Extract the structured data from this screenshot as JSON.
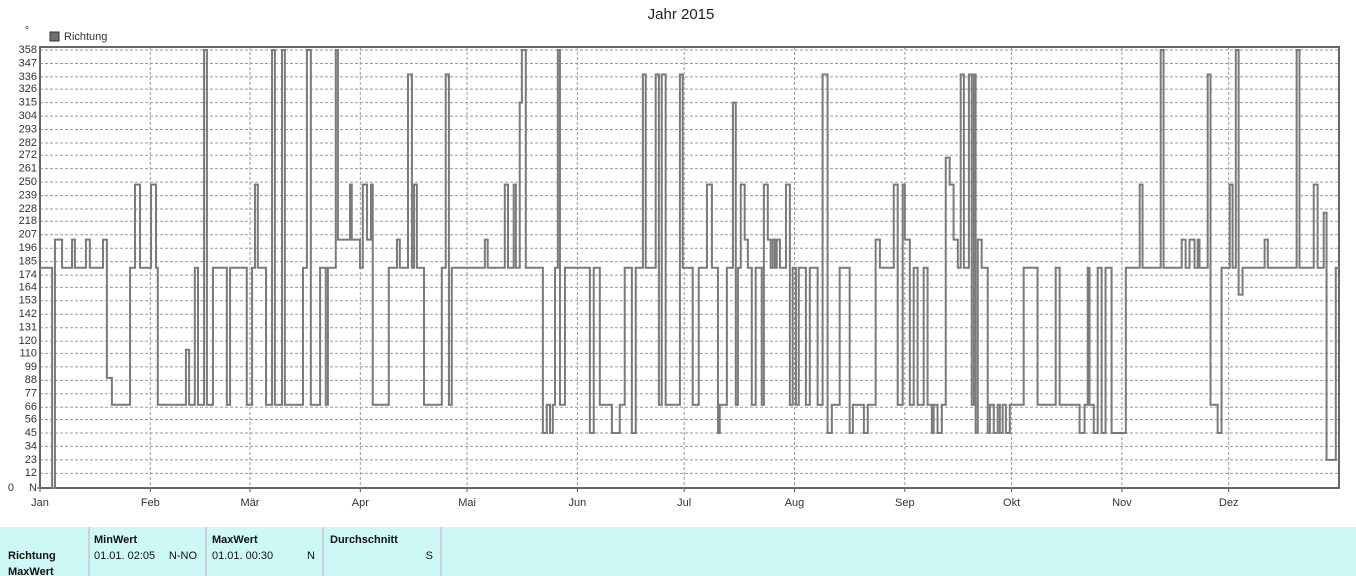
{
  "chart_data": {
    "type": "step-line",
    "title": "Jahr 2015",
    "y_unit": "°",
    "y_min_label": "N",
    "xlim": [
      0,
      365
    ],
    "ylim": [
      0,
      358
    ],
    "grid": true,
    "xticks": [
      {
        "value": 0,
        "label": "Jan"
      },
      {
        "value": 31,
        "label": "Feb"
      },
      {
        "value": 59,
        "label": "Mär"
      },
      {
        "value": 90,
        "label": "Apr"
      },
      {
        "value": 120,
        "label": "Mai"
      },
      {
        "value": 151,
        "label": "Jun"
      },
      {
        "value": 181,
        "label": "Jul"
      },
      {
        "value": 212,
        "label": "Aug"
      },
      {
        "value": 243,
        "label": "Sep"
      },
      {
        "value": 273,
        "label": "Okt"
      },
      {
        "value": 304,
        "label": "Nov"
      },
      {
        "value": 334,
        "label": "Dez"
      }
    ],
    "yticks": [
      0,
      12,
      23,
      34,
      45,
      56,
      66,
      77,
      88,
      99,
      110,
      120,
      131,
      142,
      153,
      164,
      174,
      185,
      196,
      207,
      218,
      228,
      239,
      250,
      261,
      272,
      282,
      293,
      304,
      315,
      326,
      336,
      347,
      358
    ],
    "series": [
      {
        "name": "Richtung",
        "color": "#7a7a7a",
        "x": [
          0,
          3.4,
          4.2,
          6.2,
          9.0,
          9.8,
          12.9,
          14.0,
          17.7,
          18.8,
          20.2,
          25.3,
          26.7,
          28.1,
          31.2,
          32.6,
          33.1,
          41.0,
          41.9,
          43.5,
          44.4,
          46.1,
          46.9,
          48.6,
          52.5,
          53.4,
          58.1,
          59.6,
          60.4,
          61.2,
          63.5,
          65.2,
          66.0,
          68.0,
          68.8,
          73.9,
          75.0,
          76.1,
          78.7,
          80.3,
          80.9,
          83.1,
          83.7,
          87.1,
          87.6,
          89.9,
          90.7,
          91.9,
          93.0,
          93.5,
          98.0,
          100.3,
          101.1,
          103.4,
          104.5,
          105.1,
          105.9,
          107.9,
          112.9,
          114.0,
          114.9,
          115.7,
          125.0,
          125.8,
          130.6,
          131.5,
          133.1,
          133.7,
          134.8,
          135.4,
          136.5,
          141.3,
          142.4,
          143.3,
          144.1,
          144.7,
          145.5,
          146.1,
          147.5,
          154.5,
          155.6,
          157.3,
          160.7,
          162.9,
          164.3,
          166.3,
          167.4,
          169.4,
          170.2,
          173.0,
          173.9,
          174.7,
          175.8,
          179.8,
          180.6,
          183.4,
          185.1,
          187.4,
          188.8,
          190.5,
          191.0,
          193.0,
          194.7,
          195.5,
          196.1,
          196.9,
          198.0,
          198.9,
          200.0,
          201.1,
          202.8,
          203.4,
          204.5,
          205.3,
          205.9,
          206.5,
          207.0,
          207.9,
          209.6,
          210.7,
          211.5,
          212.4,
          213.2,
          215.2,
          216.3,
          218.5,
          219.9,
          221.3,
          222.5,
          224.7,
          227.5,
          228.4,
          231.5,
          232.6,
          234.8,
          236.0,
          239.9,
          241.0,
          242.4,
          243.0,
          244.4,
          245.5,
          246.6,
          248.3,
          249.4,
          250.6,
          251.1,
          252.2,
          253.4,
          254.5,
          255.6,
          256.7,
          257.9,
          258.7,
          259.6,
          261.0,
          261.8,
          262.4,
          262.9,
          263.5,
          264.6,
          266.3,
          266.9,
          268.0,
          269.1,
          269.7,
          270.5,
          271.4,
          272.5,
          276.4,
          280.3,
          285.4,
          286.5,
          292.1,
          293.5,
          294.4,
          294.9,
          296.1,
          297.2,
          298.3,
          299.4,
          301.1,
          305.1,
          309.0,
          309.8,
          314.9,
          315.7,
          320.8,
          321.9,
          323.0,
          324.4,
          325.3,
          325.8,
          328.1,
          328.9,
          330.9,
          332.0,
          334.3,
          335.1,
          336.0,
          336.8,
          337.9,
          344.1,
          345.0,
          353.1,
          353.9,
          357.9,
          359.0,
          360.7,
          361.5,
          364.1,
          364.9
        ],
        "values": [
          180,
          0,
          203,
          180,
          203,
          180,
          203,
          180,
          203,
          90,
          68,
          180,
          248,
          180,
          248,
          180,
          68,
          113,
          68,
          180,
          68,
          358,
          68,
          180,
          68,
          180,
          68,
          180,
          248,
          180,
          68,
          358,
          68,
          358,
          68,
          180,
          358,
          68,
          180,
          68,
          180,
          358,
          203,
          248,
          203,
          180,
          248,
          203,
          248,
          68,
          180,
          203,
          180,
          338,
          180,
          248,
          180,
          68,
          180,
          338,
          68,
          180,
          203,
          180,
          248,
          180,
          248,
          180,
          315,
          358,
          180,
          45,
          68,
          45,
          68,
          180,
          358,
          68,
          180,
          45,
          180,
          68,
          45,
          68,
          180,
          45,
          180,
          338,
          180,
          338,
          68,
          338,
          68,
          338,
          180,
          68,
          180,
          248,
          180,
          45,
          68,
          180,
          315,
          68,
          180,
          248,
          203,
          180,
          68,
          180,
          68,
          248,
          203,
          180,
          203,
          180,
          203,
          180,
          248,
          68,
          180,
          68,
          180,
          68,
          180,
          68,
          338,
          45,
          68,
          180,
          45,
          68,
          45,
          68,
          203,
          180,
          248,
          68,
          248,
          203,
          68,
          180,
          68,
          180,
          68,
          45,
          68,
          45,
          68,
          270,
          248,
          203,
          180,
          338,
          180,
          338,
          68,
          338,
          45,
          203,
          180,
          45,
          68,
          45,
          68,
          45,
          68,
          45,
          68,
          180,
          68,
          180,
          68,
          45,
          68,
          180,
          68,
          45,
          180,
          45,
          180,
          45,
          180,
          248,
          180,
          358,
          180,
          203,
          180,
          203,
          180,
          203,
          180,
          338,
          68,
          45,
          180,
          248,
          180,
          358,
          158,
          180,
          203,
          180,
          358,
          180,
          248,
          180,
          225,
          23,
          180,
          180
        ]
      }
    ]
  },
  "summary_table": {
    "row_labels": [
      "Richtung",
      "MaxWert"
    ],
    "columns": [
      {
        "header": "MinWert",
        "datetime": "01.01.  02:05",
        "direction": "N-NO"
      },
      {
        "header": "MaxWert",
        "datetime": "01.01.  00:30",
        "direction": "N"
      },
      {
        "header": "Durchschnitt",
        "direction": "S"
      }
    ]
  }
}
